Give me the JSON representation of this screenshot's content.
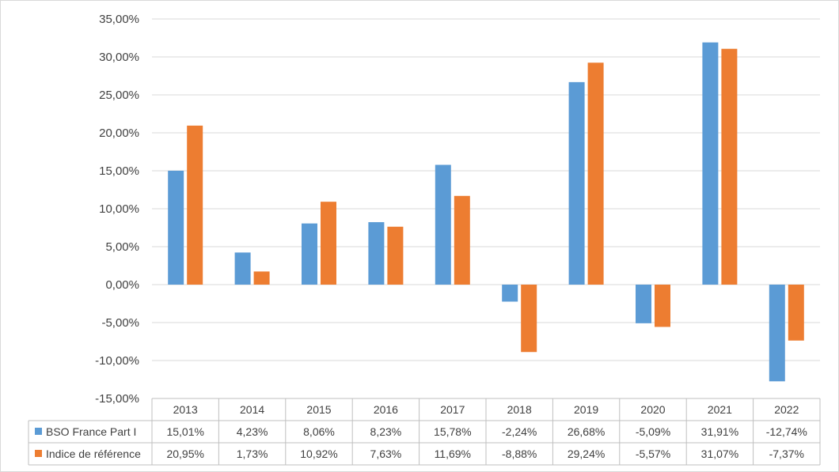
{
  "chart_data": {
    "type": "bar",
    "categories": [
      "2013",
      "2014",
      "2015",
      "2016",
      "2017",
      "2018",
      "2019",
      "2020",
      "2021",
      "2022"
    ],
    "series": [
      {
        "name": "BSO France Part I",
        "color": "#5B9BD5",
        "values": [
          15.01,
          4.23,
          8.06,
          8.23,
          15.78,
          -2.24,
          26.68,
          -5.09,
          31.91,
          -12.74
        ],
        "labels": [
          "15,01%",
          "4,23%",
          "8,06%",
          "8,23%",
          "15,78%",
          "-2,24%",
          "26,68%",
          "-5,09%",
          "31,91%",
          "-12,74%"
        ]
      },
      {
        "name": "Indice de référence",
        "color": "#ED7D31",
        "values": [
          20.95,
          1.73,
          10.92,
          7.63,
          11.69,
          -8.88,
          29.24,
          -5.57,
          31.07,
          -7.37
        ],
        "labels": [
          "20,95%",
          "1,73%",
          "10,92%",
          "7,63%",
          "11,69%",
          "-8,88%",
          "29,24%",
          "-5,57%",
          "31,07%",
          "-7,37%"
        ]
      }
    ],
    "y_ticks": [
      "35,00%",
      "30,00%",
      "25,00%",
      "20,00%",
      "15,00%",
      "10,00%",
      "5,00%",
      "0,00%",
      "-5,00%",
      "-10,00%",
      "-15,00%"
    ],
    "ylim": [
      -15,
      35
    ],
    "grid": true,
    "legend": "data-table-bottom"
  }
}
